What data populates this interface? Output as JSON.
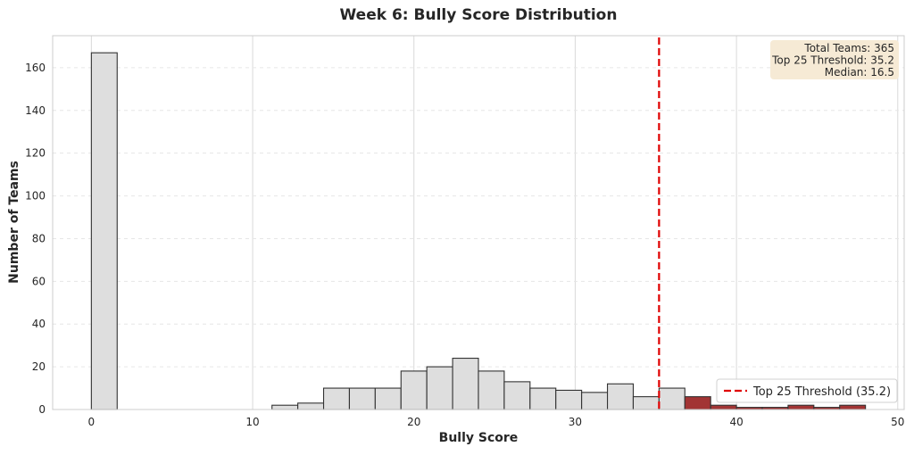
{
  "chart_data": {
    "type": "bar",
    "title": "Week 6: Bully Score Distribution",
    "xlabel": "Bully Score",
    "ylabel": "Number of Teams",
    "xlim": [
      -2.4,
      50.4
    ],
    "ylim": [
      0,
      175
    ],
    "xticks": [
      0,
      10,
      20,
      30,
      40,
      50
    ],
    "yticks": [
      0,
      20,
      40,
      60,
      80,
      100,
      120,
      140,
      160
    ],
    "grid": true,
    "bin_width": 1.6,
    "bin_start": 0,
    "counts": [
      167,
      0,
      0,
      0,
      0,
      0,
      0,
      2,
      3,
      10,
      10,
      10,
      18,
      20,
      24,
      18,
      13,
      10,
      9,
      8,
      12,
      6,
      10,
      6,
      2,
      1,
      1,
      2,
      1,
      2
    ],
    "highlight_from_bin": 23,
    "colors": {
      "base_bar": "#dedede",
      "highlight_bar": "#a23434",
      "bar_edge": "#333333",
      "threshold_line": "#e00000",
      "stats_box": "#f6ead5"
    },
    "threshold": {
      "value": 35.2,
      "legend_label": "Top 25 Threshold (35.2)",
      "legend_position": "lower-right",
      "style": "dashed"
    },
    "stats_box": {
      "position": "top-right",
      "lines": [
        "Total Teams: 365",
        "Top 25 Threshold: 35.2",
        "Median: 16.5"
      ]
    }
  }
}
